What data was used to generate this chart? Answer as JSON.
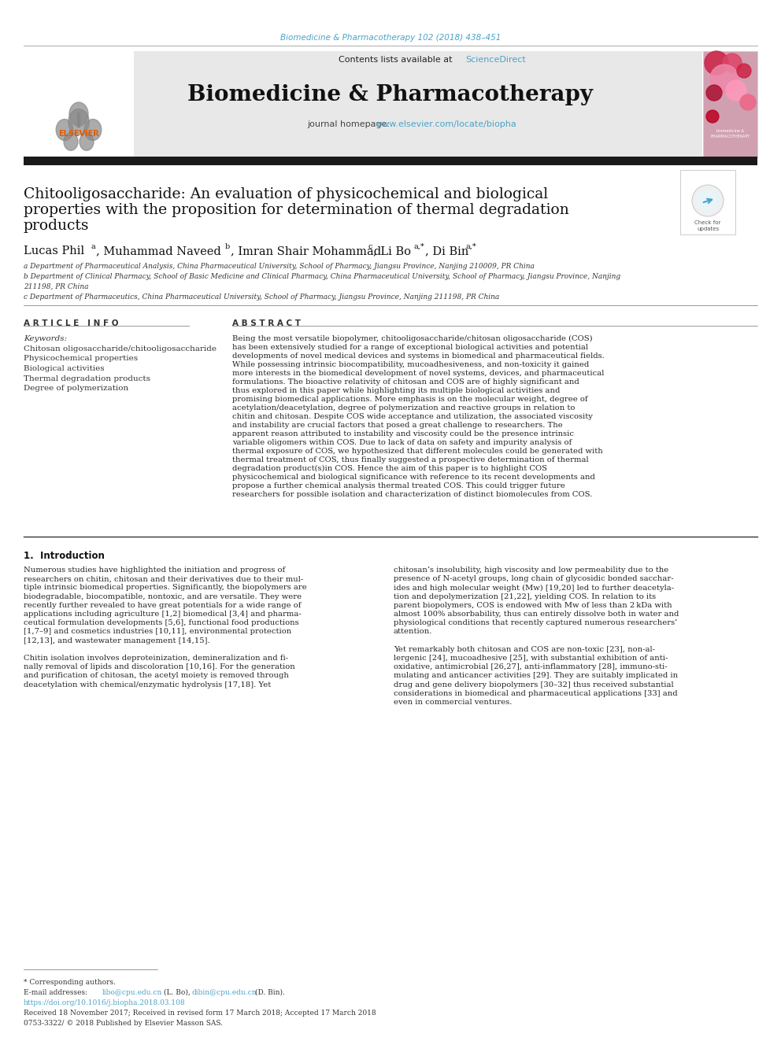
{
  "page_bg": "#ffffff",
  "top_citation": "Biomedicine & Pharmacotherapy 102 (2018) 438–451",
  "top_citation_color": "#4ba3c7",
  "header_bg": "#e8e8e8",
  "header_contents": "Contents lists available at",
  "header_sciencedirect": "ScienceDirect",
  "header_sciencedirect_color": "#4ba3c7",
  "journal_name": "Biomedicine & Pharmacotherapy",
  "journal_homepage_label": "journal homepage:",
  "journal_homepage_url": "www.elsevier.com/locate/biopha",
  "journal_homepage_color": "#4ba3c7",
  "black_bar_color": "#1a1a1a",
  "article_title_line1": "Chitooligosaccharide: An evaluation of physicochemical and biological",
  "article_title_line2": "properties with the proposition for determination of thermal degradation",
  "article_title_line3": "products",
  "affil_a": "a Department of Pharmaceutical Analysis, China Pharmaceutical University, School of Pharmacy, Jiangsu Province, Nanjing 210009, PR China",
  "affil_b1": "b Department of Clinical Pharmacy, School of Basic Medicine and Clinical Pharmacy, China Pharmaceutical University, School of Pharmacy, Jiangsu Province, Nanjing",
  "affil_b2": "211198, PR China",
  "affil_c": "c Department of Pharmaceutics, China Pharmaceutical University, School of Pharmacy, Jiangsu Province, Nanjing 211198, PR China",
  "article_info_header": "A R T I C L E   I N F O",
  "abstract_header": "A B S T R A C T",
  "keywords_label": "Keywords:",
  "keywords": [
    "Chitosan oligosaccharide/chitooligosaccharide",
    "Physicochemical properties",
    "Biological activities",
    "Thermal degradation products",
    "Degree of polymerization"
  ],
  "abstract_text": "Being the most versatile biopolymer, chitooligosaccharide/chitosan oligosaccharide (COS) has been extensively studied for a range of exceptional biological activities and potential developments of novel medical devices and systems in biomedical and pharmaceutical fields. While possessing intrinsic biocompatibility, mucoadhesiveness, and non-toxicity it gained more interests in the biomedical development of novel systems, devices, and pharmaceutical formulations. The bioactive relativity of chitosan and COS are of highly significant and thus explored in this paper while highlighting its multiple biological activities and promising biomedical applications. More emphasis is on the molecular weight, degree of acetylation/deacetylation, degree of polymerization and reactive groups in relation to chitin and chitosan. Despite COS wide acceptance and utilization, the associated viscosity and instability are crucial factors that posed a great challenge to researchers. The apparent reason attributed to instability and viscosity could be the presence intrinsic variable oligomers within COS. Due to lack of data on safety and impurity analysis of thermal exposure of COS, we hypothesized that different molecules could be generated with thermal treatment of COS, thus finally suggested a prospective determination of thermal degradation product(s)in COS. Hence the aim of this paper is to highlight COS physicochemical and biological significance with reference to its recent developments and propose a further chemical analysis thermal treated COS. This could trigger future researchers for possible isolation and characterization of distinct biomolecules from COS.",
  "intro_header": "1.  Introduction",
  "intro1_lines": [
    "Numerous studies have highlighted the initiation and progress of",
    "researchers on chitin, chitosan and their derivatives due to their mul-",
    "tiple intrinsic biomedical properties. Significantly, the biopolymers are",
    "biodegradable, biocompatible, nontoxic, and are versatile. They were",
    "recently further revealed to have great potentials for a wide range of",
    "applications including agriculture [1,2] biomedical [3,4] and pharma-",
    "ceutical formulation developments [5,6], functional food productions",
    "[1,7–9] and cosmetics industries [10,11], environmental protection",
    "[12,13], and wastewater management [14,15].",
    "",
    "Chitin isolation involves deproteinization, demineralization and fi-",
    "nally removal of lipids and discoloration [10,16]. For the generation",
    "and purification of chitosan, the acetyl moiety is removed through",
    "deacetylation with chemical/enzymatic hydrolysis [17,18]. Yet"
  ],
  "intro2_lines": [
    "chitosan’s insolubility, high viscosity and low permeability due to the",
    "presence of N-acetyl groups, long chain of glycosidic bonded sacchar-",
    "ides and high molecular weight (Mw) [19,20] led to further deacetyla-",
    "tion and depolymerization [21,22], yielding COS. In relation to its",
    "parent biopolymers, COS is endowed with Mw of less than 2 kDa with",
    "almost 100% absorbability, thus can entirely dissolve both in water and",
    "physiological conditions that recently captured numerous researchers’",
    "attention.",
    "",
    "Yet remarkably both chitosan and COS are non-toxic [23], non-al-",
    "lergenic [24], mucoadhesive [25], with substantial exhibition of anti-",
    "oxidative, antimicrobial [26,27], anti-inflammatory [28], immuno-sti-",
    "mulating and anticancer activities [29]. They are suitably implicated in",
    "drug and gene delivery biopolymers [30–32] thus received substantial",
    "considerations in biomedical and pharmaceutical applications [33] and",
    "even in commercial ventures."
  ],
  "footnote_star": "* Corresponding authors.",
  "footnote_email_prefix": "E-mail addresses: ",
  "footnote_email1": "libo@cpu.edu.cn",
  "footnote_email1_suffix": " (L. Bo), ",
  "footnote_email2": "dibin@cpu.edu.cn",
  "footnote_email2_suffix": " (D. Bin).",
  "footnote_email_color": "#4ba3c7",
  "footnote_doi": "https://doi.org/10.1016/j.biopha.2018.03.108",
  "footnote_doi_color": "#4ba3c7",
  "footnote_received": "Received 18 November 2017; Received in revised form 17 March 2018; Accepted 17 March 2018",
  "footnote_issn": "0753-3322/ © 2018 Published by Elsevier Masson SAS."
}
